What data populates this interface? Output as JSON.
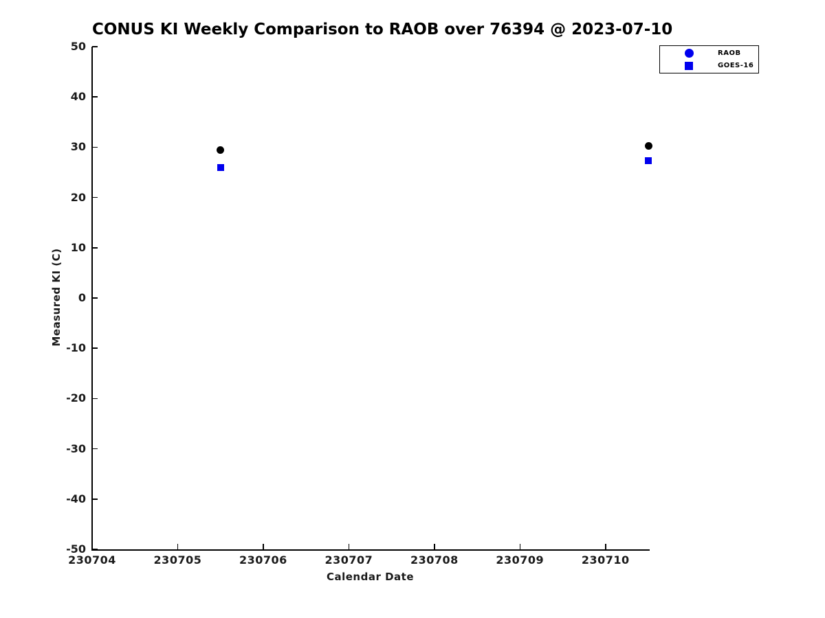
{
  "title": "CONUS KI Weekly Comparison to RAOB over 76394 @ 2023-07-10",
  "colors": {
    "background": "#ffffff",
    "axis": "#000000",
    "marker_blue": "#0000ee",
    "marker_black": "#000000"
  },
  "chart_data": {
    "type": "scatter",
    "title": "CONUS KI Weekly Comparison to RAOB over 76394 @ 2023-07-10",
    "xlabel": "Calendar Date",
    "ylabel": "Measured KI (C)",
    "xlim": [
      230704,
      230710.5
    ],
    "ylim": [
      -50,
      50
    ],
    "xticks": [
      "230704",
      "230705",
      "230706",
      "230707",
      "230708",
      "230709",
      "230710"
    ],
    "xtick_values": [
      230704,
      230705,
      230706,
      230707,
      230708,
      230709,
      230710
    ],
    "yticks": [
      "50",
      "40",
      "30",
      "20",
      "10",
      "0",
      "-10",
      "-20",
      "-30",
      "-40",
      "-50"
    ],
    "ytick_values": [
      50,
      40,
      30,
      20,
      10,
      0,
      -10,
      -20,
      -30,
      -40,
      -50
    ],
    "grid": false,
    "legend_position": "top-right",
    "series": [
      {
        "name": "RAOB",
        "marker": "circle",
        "marker_color": "#000000",
        "legend_marker_color": "#0000ee",
        "points": [
          {
            "x": 230705.5,
            "y": 29.4
          },
          {
            "x": 230710.5,
            "y": 30.3
          }
        ]
      },
      {
        "name": "GOES-16",
        "marker": "square",
        "marker_color": "#0000ee",
        "legend_marker_color": "#0000ee",
        "points": [
          {
            "x": 230705.5,
            "y": 26.0
          },
          {
            "x": 230710.5,
            "y": 27.3
          }
        ]
      }
    ]
  }
}
